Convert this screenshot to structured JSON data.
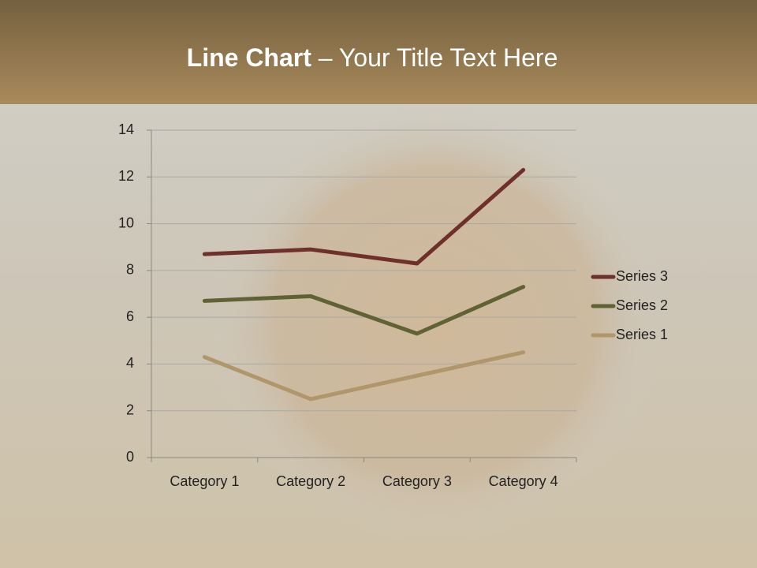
{
  "chart_data": {
    "type": "line",
    "title": [
      "Line Chart",
      "– Your Title Text Here"
    ],
    "categories": [
      "Category 1",
      "Category 2",
      "Category 3",
      "Category 4"
    ],
    "series": [
      {
        "name": "Series 1",
        "color": "#b1966b",
        "values": [
          4.3,
          2.5,
          3.5,
          4.5
        ]
      },
      {
        "name": "Series 2",
        "color": "#5f6333",
        "values": [
          6.7,
          6.9,
          5.3,
          7.3
        ]
      },
      {
        "name": "Series 3",
        "color": "#6f2f2b",
        "values": [
          8.7,
          8.9,
          8.3,
          12.3
        ]
      }
    ],
    "ylim": [
      0,
      14
    ],
    "yticks": [
      0,
      2,
      4,
      6,
      8,
      10,
      12,
      14
    ],
    "grid": true,
    "legend": "right"
  }
}
